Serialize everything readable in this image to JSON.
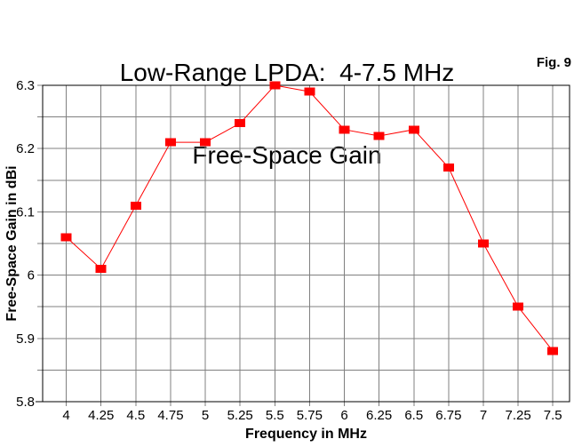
{
  "figure_label": "Fig. 9",
  "chart_data": {
    "type": "line",
    "title_line1": "Low-Range LPDA:  4-7.5 MHz",
    "title_line2": "Free-Space Gain",
    "title": "Low-Range LPDA: 4-7.5 MHz Free-Space Gain",
    "xlabel": "Frequency in MHz",
    "ylabel": "Free-Space Gain in dBi",
    "x": [
      4,
      4.25,
      4.5,
      4.75,
      5,
      5.25,
      5.5,
      5.75,
      6,
      6.25,
      6.5,
      6.75,
      7,
      7.25,
      7.5
    ],
    "series": [
      {
        "name": "Free-Space Gain",
        "values": [
          6.06,
          6.01,
          6.11,
          6.21,
          6.21,
          6.24,
          6.3,
          6.29,
          6.23,
          6.22,
          6.23,
          6.17,
          6.05,
          5.95,
          5.88
        ],
        "marker": "filled-square",
        "color": "#ff0000"
      }
    ],
    "xlim": [
      3.83,
      7.62
    ],
    "ylim": [
      5.8,
      6.3
    ],
    "x_tick_labels": [
      "4",
      "4.25",
      "4.5",
      "4.75",
      "5",
      "5.25",
      "5.5",
      "5.75",
      "6",
      "6.25",
      "6.5",
      "6.75",
      "7",
      "7.25",
      "7.5"
    ],
    "y_gridlines": [
      5.8,
      5.85,
      5.9,
      5.95,
      6,
      6.05,
      6.1,
      6.15,
      6.2,
      6.25,
      6.3
    ],
    "y_tick_labels": [
      {
        "value": 5.8,
        "label": "5.8"
      },
      {
        "value": 5.9,
        "label": "5.9"
      },
      {
        "value": 6,
        "label": "6"
      },
      {
        "value": 6.1,
        "label": "6.1"
      },
      {
        "value": 6.2,
        "label": "6.2"
      },
      {
        "value": 6.3,
        "label": "6.3"
      }
    ],
    "grid": true,
    "legend": false,
    "colors": {
      "series": "#ff0000",
      "grid": "#808080",
      "axis": "#000000",
      "background": "#ffffff",
      "text": "#000000"
    }
  }
}
